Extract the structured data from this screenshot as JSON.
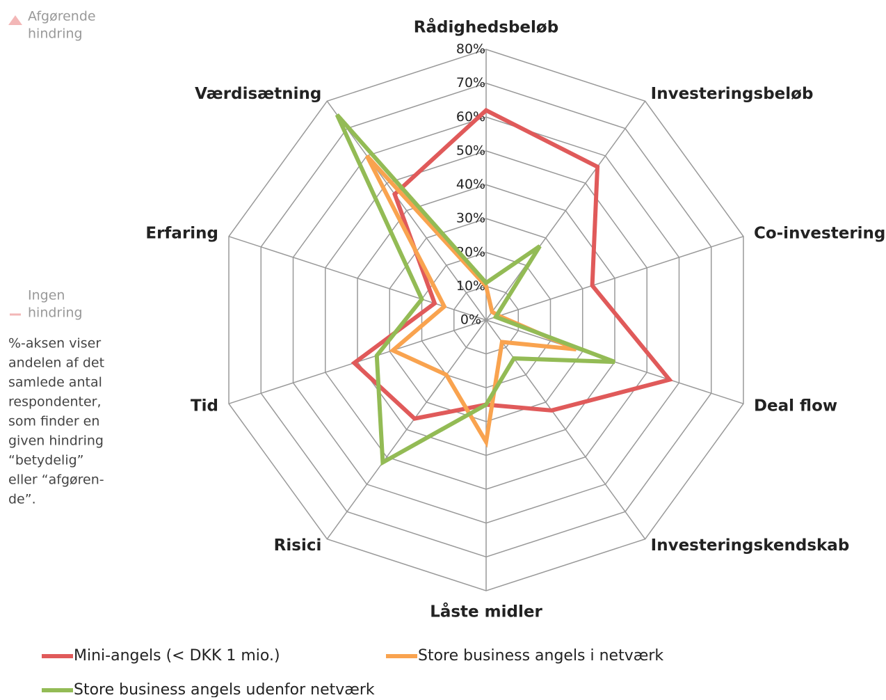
{
  "chart_data": {
    "type": "radar",
    "categories": [
      "Rådighedsbeløb",
      "Investeringsbeløb",
      "Co-investering",
      "Deal flow",
      "Investeringskendskab",
      "Låste midler",
      "Risici",
      "Tid",
      "Erfaring",
      "Værdisætning"
    ],
    "series": [
      {
        "name": "Mini-angels (< DKK 1 mio.)",
        "color": "#e05a5a",
        "values": [
          62,
          56,
          33,
          57,
          33,
          25,
          36,
          41,
          16,
          46
        ]
      },
      {
        "name": "Store business angels i netværk",
        "color": "#f9a34f",
        "values": [
          10,
          3,
          4,
          28,
          8,
          36,
          20,
          29,
          13,
          60
        ]
      },
      {
        "name": "Store business angels udenfor netværk",
        "color": "#93bb55",
        "values": [
          11,
          27,
          3,
          40,
          14,
          25,
          52,
          34,
          20,
          75
        ]
      }
    ],
    "ylim": [
      0,
      80
    ],
    "yticks": [
      {
        "value": 0,
        "label": "0%"
      },
      {
        "value": 10,
        "label": "10%"
      },
      {
        "value": 20,
        "label": "20%"
      },
      {
        "value": 30,
        "label": "30%"
      },
      {
        "value": 40,
        "label": "40%"
      },
      {
        "value": 50,
        "label": "50%"
      },
      {
        "value": 60,
        "label": "60%"
      },
      {
        "value": 70,
        "label": "70%"
      },
      {
        "value": 80,
        "label": "80%"
      }
    ],
    "grid": true,
    "annotations": {
      "top": [
        "Afgørende",
        "hindring"
      ],
      "bottom": [
        "Ingen",
        "hindring"
      ],
      "note": [
        "%-aksen viser",
        "andelen af det",
        "samlede antal",
        "respondenter,",
        "som finder en",
        "given hindring",
        "“betydelig”",
        "eller “afgøren-",
        "de”."
      ]
    }
  }
}
